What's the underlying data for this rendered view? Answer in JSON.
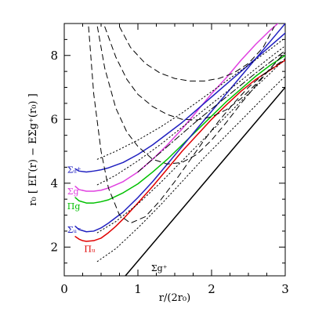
{
  "chart_data": {
    "type": "line",
    "xlabel": "r/(2r₀)",
    "ylabel": "r₀ [ EΓ(r) − EΣg⁺(r₀) ]",
    "xlim": [
      0,
      3
    ],
    "ylim": [
      1.1,
      9.0
    ],
    "x_ticks": [
      "0",
      "1",
      "2",
      "3"
    ],
    "y_ticks": [
      "2",
      "4",
      "6",
      "8"
    ],
    "grid": false,
    "legend": "none",
    "annotations": [
      {
        "text": "Σᵤ⁺",
        "x": 0.04,
        "y": 4.42,
        "color": "#2020c0"
      },
      {
        "text": "Σg⁻",
        "x": 0.04,
        "y": 3.75,
        "color": "#e040e0"
      },
      {
        "text": "Πg",
        "x": 0.04,
        "y": 3.28,
        "color": "#00c000"
      },
      {
        "text": "Σᵤ⁻",
        "x": 0.04,
        "y": 2.55,
        "color": "#2020c0"
      },
      {
        "text": "Πᵤ",
        "x": 0.27,
        "y": 1.95,
        "color": "#e00000"
      },
      {
        "text": "Σg⁺",
        "x": 1.18,
        "y": 1.35,
        "color": "#000000"
      }
    ],
    "series": [
      {
        "color": "#000000",
        "style": "solid",
        "x": [
          0.83,
          3.0
        ],
        "y": [
          1.1,
          7.0
        ]
      },
      {
        "color": "#e00000",
        "style": "solid",
        "x": [
          0.15,
          0.2,
          0.25,
          0.3,
          0.4,
          0.5,
          0.6,
          0.7,
          0.8,
          1.0,
          1.2,
          1.4,
          1.6,
          1.8,
          2.0,
          2.2,
          2.4,
          2.6,
          2.8,
          3.0
        ],
        "y": [
          2.33,
          2.25,
          2.2,
          2.18,
          2.2,
          2.28,
          2.45,
          2.65,
          2.88,
          3.38,
          3.9,
          4.45,
          5.0,
          5.5,
          6.0,
          6.45,
          6.88,
          7.25,
          7.55,
          7.85
        ]
      },
      {
        "color": "#00c000",
        "style": "solid",
        "x": [
          0.15,
          0.2,
          0.3,
          0.4,
          0.5,
          0.6,
          0.8,
          1.0,
          1.2,
          1.4,
          1.6,
          1.8,
          2.0,
          2.2,
          2.4,
          2.6,
          2.8,
          3.0
        ],
        "y": [
          3.55,
          3.45,
          3.38,
          3.38,
          3.42,
          3.48,
          3.7,
          3.98,
          4.35,
          4.75,
          5.2,
          5.65,
          6.1,
          6.55,
          6.95,
          7.35,
          7.7,
          8.0
        ]
      },
      {
        "color": "#e040e0",
        "style": "solid",
        "x": [
          0.15,
          0.2,
          0.3,
          0.4,
          0.5,
          0.6,
          0.8,
          1.0,
          1.2,
          1.4,
          1.6,
          1.8,
          2.0,
          2.2,
          2.4,
          2.6,
          2.8,
          3.0
        ],
        "y": [
          3.9,
          3.8,
          3.75,
          3.75,
          3.78,
          3.85,
          4.05,
          4.35,
          4.75,
          5.2,
          5.7,
          6.25,
          6.8,
          7.3,
          7.85,
          8.35,
          8.8,
          9.2
        ]
      },
      {
        "color": "#2020c0",
        "style": "solid",
        "x": [
          0.15,
          0.2,
          0.3,
          0.4,
          0.5,
          0.6,
          0.8,
          1.0,
          1.2,
          1.4,
          1.6,
          1.8,
          2.0,
          2.2,
          2.4,
          2.6,
          2.8,
          3.0
        ],
        "y": [
          2.65,
          2.55,
          2.48,
          2.5,
          2.6,
          2.75,
          3.1,
          3.55,
          4.05,
          4.6,
          5.15,
          5.7,
          6.25,
          6.8,
          7.35,
          7.9,
          8.45,
          9.0
        ]
      },
      {
        "color": "#2020c0",
        "style": "solid",
        "x": [
          0.15,
          0.2,
          0.3,
          0.4,
          0.5,
          0.6,
          0.8,
          1.0,
          1.2,
          1.4,
          1.6,
          1.8,
          2.0,
          2.2,
          2.4,
          2.6,
          2.8,
          3.0
        ],
        "y": [
          4.45,
          4.38,
          4.35,
          4.38,
          4.42,
          4.48,
          4.65,
          4.9,
          5.2,
          5.55,
          5.9,
          6.3,
          6.7,
          7.1,
          7.5,
          7.9,
          8.3,
          8.7
        ]
      },
      {
        "color": "#000000",
        "style": "dashed",
        "x": [
          0.75,
          0.9,
          1.1,
          1.3,
          1.5,
          1.7,
          1.9,
          2.1,
          2.3,
          2.5,
          2.7,
          2.85
        ],
        "y": [
          8.9,
          8.25,
          7.75,
          7.45,
          7.28,
          7.2,
          7.2,
          7.28,
          7.45,
          7.75,
          8.25,
          8.9
        ]
      },
      {
        "color": "#000000",
        "style": "dashed",
        "x": [
          0.55,
          0.7,
          0.85,
          1.0,
          1.2,
          1.4,
          1.6,
          1.8,
          2.0,
          2.2,
          2.4,
          2.6,
          2.8,
          3.0
        ],
        "y": [
          8.9,
          7.95,
          7.25,
          6.78,
          6.4,
          6.15,
          6.0,
          5.98,
          6.08,
          6.3,
          6.65,
          7.1,
          7.6,
          8.1
        ]
      },
      {
        "color": "#000000",
        "style": "dashed",
        "x": [
          0.45,
          0.55,
          0.7,
          0.85,
          1.0,
          1.2,
          1.4,
          1.6,
          1.8,
          2.0,
          2.2,
          2.4,
          2.6,
          2.8,
          3.0
        ],
        "y": [
          8.9,
          7.6,
          6.35,
          5.6,
          5.15,
          4.75,
          4.6,
          4.65,
          4.9,
          5.35,
          5.9,
          6.5,
          7.05,
          7.6,
          8.1
        ]
      },
      {
        "color": "#000000",
        "style": "dashed",
        "x": [
          0.33,
          0.4,
          0.5,
          0.6,
          0.75,
          0.9,
          1.1,
          1.3,
          1.5,
          1.7,
          1.9,
          2.1,
          2.3,
          2.5,
          2.7,
          3.0
        ],
        "y": [
          8.9,
          6.8,
          5.0,
          3.85,
          3.0,
          2.75,
          2.95,
          3.45,
          4.05,
          4.7,
          5.35,
          5.95,
          6.5,
          7.0,
          7.4,
          7.9
        ]
      },
      {
        "color": "#000000",
        "style": "dotted",
        "x": [
          0.45,
          0.7,
          1.0,
          1.3,
          1.6,
          1.9,
          2.2,
          2.5,
          2.8,
          3.0
        ],
        "y": [
          1.55,
          1.95,
          2.6,
          3.3,
          4.05,
          4.8,
          5.5,
          6.2,
          6.9,
          7.35
        ]
      },
      {
        "color": "#000000",
        "style": "dotted",
        "x": [
          0.45,
          0.7,
          1.0,
          1.3,
          1.6,
          1.9,
          2.2,
          2.5,
          2.8,
          3.0
        ],
        "y": [
          2.45,
          2.8,
          3.35,
          4.0,
          4.7,
          5.4,
          6.1,
          6.8,
          7.45,
          7.9
        ]
      },
      {
        "color": "#000000",
        "style": "dotted",
        "x": [
          0.45,
          0.7,
          1.0,
          1.3,
          1.6,
          1.9,
          2.2,
          2.5,
          2.8,
          3.0
        ],
        "y": [
          3.95,
          4.25,
          4.7,
          5.2,
          5.75,
          6.3,
          6.85,
          7.4,
          7.95,
          8.3
        ]
      },
      {
        "color": "#000000",
        "style": "dotted",
        "x": [
          0.45,
          0.7,
          1.0,
          1.3,
          1.6,
          1.9,
          2.2,
          2.5,
          2.8,
          3.0
        ],
        "y": [
          4.75,
          5.0,
          5.35,
          5.75,
          6.2,
          6.7,
          7.2,
          7.7,
          8.2,
          8.55
        ]
      },
      {
        "color": "#000000",
        "style": "dashdot",
        "x": [
          1.0,
          1.4,
          1.8,
          2.2,
          2.6,
          3.0
        ],
        "y": [
          4.35,
          5.15,
          5.95,
          6.7,
          7.45,
          8.15
        ]
      }
    ]
  }
}
